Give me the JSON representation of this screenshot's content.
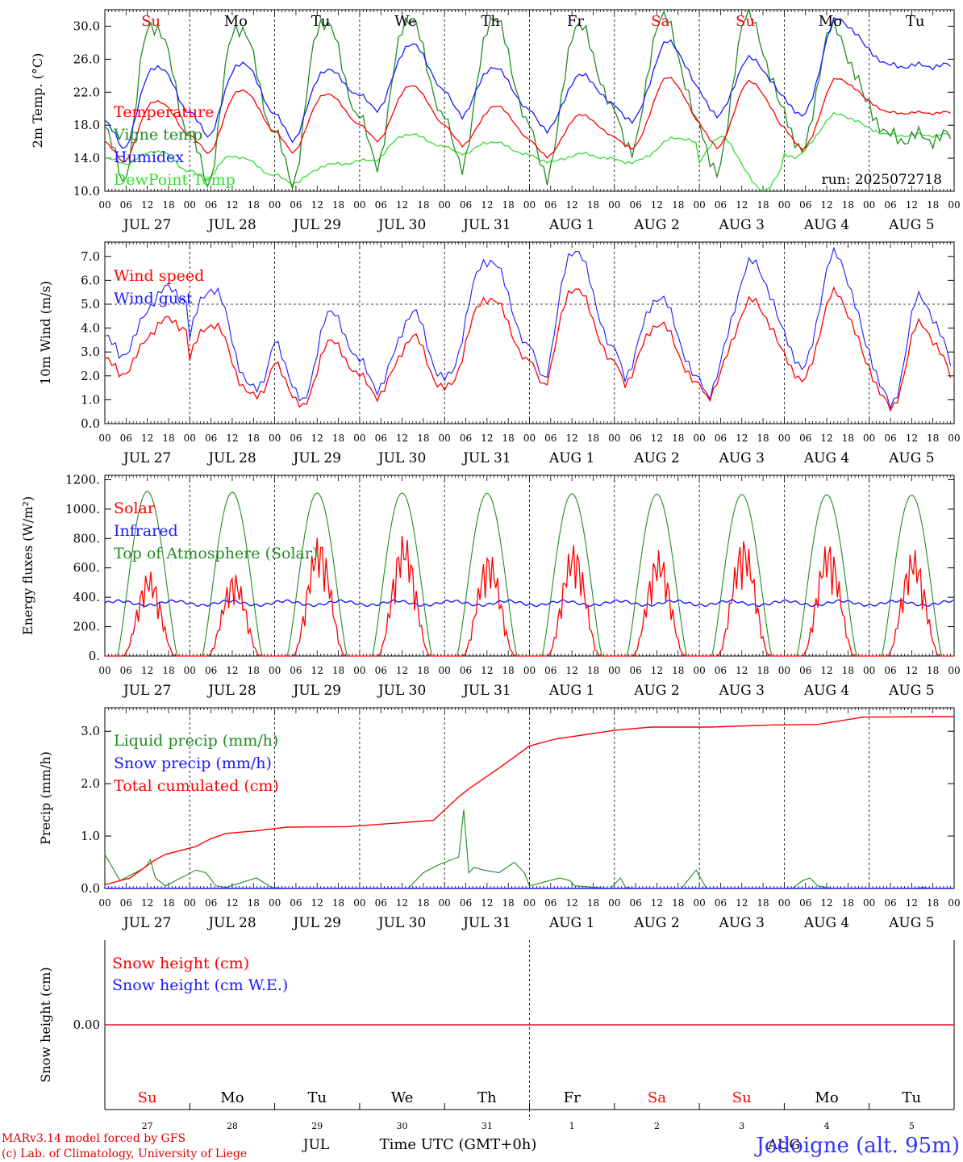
{
  "colors": {
    "red": "#ff0000",
    "green": "#228b22",
    "blue": "#1a1aff",
    "lightgreen": "#33dd33",
    "axis": "#000000",
    "grid": "#000000",
    "credit": "#dd0000",
    "station": "#3333ff"
  },
  "days": {
    "abbr": [
      "Su",
      "Mo",
      "Tu",
      "We",
      "Th",
      "Fr",
      "Sa",
      "Su",
      "Mo",
      "Tu"
    ],
    "weekend_flags": [
      true,
      false,
      false,
      false,
      false,
      false,
      true,
      true,
      false,
      false
    ],
    "dates": [
      "JUL 27",
      "JUL 28",
      "JUL 29",
      "JUL 30",
      "JUL 31",
      "AUG  1",
      "AUG  2",
      "AUG  3",
      "AUG  4",
      "AUG  5"
    ],
    "nums": [
      "27",
      "28",
      "29",
      "30",
      "31",
      "1",
      "2",
      "3",
      "4",
      "5"
    ],
    "hour_ticks": [
      "00",
      "06",
      "12",
      "18"
    ],
    "end_tick": "00"
  },
  "footer": {
    "credit_line1": "MARv3.14 model forced by GFS",
    "credit_line2": "(c) Lab. of Climatology, University of Liege",
    "month_jul": "JUL",
    "month_aug": "AUG",
    "time_label": "Time UTC (GMT+0h)",
    "station": "Jodoigne (alt. 95m)"
  },
  "chart_data": [
    {
      "id": "temp",
      "type": "line",
      "ylabel": "2m Temp. (°C)",
      "ylim": [
        10,
        32
      ],
      "yticks": [
        "10.0",
        "14.0",
        "18.0",
        "22.0",
        "26.0",
        "30.0"
      ],
      "ytick_values": [
        10,
        14,
        18,
        22,
        26,
        30
      ],
      "annotation": "run: 2025072718",
      "series": [
        {
          "name": "Temperature",
          "color": "red",
          "days": [
            {
              "min": 13.6,
              "max": 21.0,
              "tmin": 5,
              "tmax": 14
            },
            {
              "min": 14.7,
              "max": 22.3,
              "tmin": 5,
              "tmax": 14
            },
            {
              "min": 14.8,
              "max": 21.8,
              "tmin": 5,
              "tmax": 14
            },
            {
              "min": 16.2,
              "max": 22.8,
              "tmin": 5,
              "tmax": 14
            },
            {
              "min": 15.6,
              "max": 20.3,
              "tmin": 5,
              "tmax": 14
            },
            {
              "min": 14.2,
              "max": 19.2,
              "tmin": 5,
              "tmax": 14
            },
            {
              "min": 15.2,
              "max": 23.7,
              "tmin": 5,
              "tmax": 15
            },
            {
              "min": 15.2,
              "max": 23.2,
              "tmin": 5,
              "tmax": 14
            },
            {
              "min": 15.0,
              "max": 23.6,
              "tmin": 5,
              "tmax": 15
            },
            {
              "min": 19.5,
              "max": 19.5,
              "tmin": 5,
              "tmax": 10
            }
          ]
        },
        {
          "name": "Vigne temp",
          "color": "green",
          "days": [
            {
              "min": 11.5,
              "max": 30.5,
              "tmin": 5,
              "tmax": 13
            },
            {
              "min": 11.2,
              "max": 30.2,
              "tmin": 5,
              "tmax": 13
            },
            {
              "min": 11.3,
              "max": 30.8,
              "tmin": 5,
              "tmax": 13
            },
            {
              "min": 13.5,
              "max": 31.0,
              "tmin": 5,
              "tmax": 13
            },
            {
              "min": 13.2,
              "max": 31.0,
              "tmin": 5,
              "tmax": 13
            },
            {
              "min": 11.8,
              "max": 30.0,
              "tmin": 5,
              "tmax": 13
            },
            {
              "min": 14.8,
              "max": 31.0,
              "tmin": 5,
              "tmax": 13
            },
            {
              "min": 12.0,
              "max": 31.0,
              "tmin": 5,
              "tmax": 13
            },
            {
              "min": 14.5,
              "max": 29.5,
              "tmin": 5,
              "tmax": 13
            },
            {
              "min": 16.5,
              "max": 16.5,
              "tmin": 5,
              "tmax": 10
            }
          ]
        },
        {
          "name": "Humidex",
          "color": "blue",
          "days": [
            {
              "min": 15.3,
              "max": 25.2,
              "tmin": 5,
              "tmax": 14
            },
            {
              "min": 16.8,
              "max": 25.6,
              "tmin": 5,
              "tmax": 14
            },
            {
              "min": 16.3,
              "max": 24.7,
              "tmin": 5,
              "tmax": 14
            },
            {
              "min": 20.0,
              "max": 27.8,
              "tmin": 5,
              "tmax": 14
            },
            {
              "min": 19.2,
              "max": 25.0,
              "tmin": 5,
              "tmax": 13
            },
            {
              "min": 17.4,
              "max": 24.0,
              "tmin": 5,
              "tmax": 14
            },
            {
              "min": 18.5,
              "max": 28.0,
              "tmin": 5,
              "tmax": 15
            },
            {
              "min": 19.0,
              "max": 26.0,
              "tmin": 5,
              "tmax": 14
            },
            {
              "min": 19.0,
              "max": 30.8,
              "tmin": 5,
              "tmax": 15
            },
            {
              "min": 25.2,
              "max": 25.2,
              "tmin": 5,
              "tmax": 10
            }
          ]
        },
        {
          "name": "DewPoint Temp",
          "color": "lightgreen",
          "days": [
            {
              "min": 13.4,
              "max": 14.9,
              "tmin": 6,
              "tmax": 14
            },
            {
              "min": 11.5,
              "max": 14.3,
              "tmin": 4,
              "tmax": 12
            },
            {
              "min": 11.0,
              "max": 13.2,
              "tmin": 5,
              "tmax": 15
            },
            {
              "min": 13.8,
              "max": 16.9,
              "tmin": 4,
              "tmax": 13
            },
            {
              "min": 14.5,
              "max": 16.0,
              "tmin": 6,
              "tmax": 12
            },
            {
              "min": 13.5,
              "max": 14.5,
              "tmin": 6,
              "tmax": 14
            },
            {
              "min": 13.5,
              "max": 16.5,
              "tmin": 5,
              "tmax": 18
            },
            {
              "min": 10.2,
              "max": 16.5,
              "tmin": 16,
              "tmax": 2
            },
            {
              "min": 14.2,
              "max": 19.3,
              "tmin": 3,
              "tmax": 15
            },
            {
              "min": 16.8,
              "max": 16.8,
              "tmin": 5,
              "tmax": 10
            }
          ]
        }
      ]
    },
    {
      "id": "wind",
      "type": "line",
      "ylabel": "10m Wind (m/s)",
      "ylim": [
        0,
        7.6
      ],
      "yticks": [
        "0.0",
        "1.0",
        "2.0",
        "3.0",
        "4.0",
        "5.0",
        "6.0",
        "7.0"
      ],
      "ytick_values": [
        0,
        1,
        2,
        3,
        4,
        5,
        6,
        7
      ],
      "reference_line": 5.0,
      "series": [
        {
          "name": "Wind speed",
          "color": "red",
          "days": [
            {
              "min": 2.1,
              "max": 4.3,
              "tmin": 4,
              "tmax": 17
            },
            {
              "min": 1.1,
              "max": 4.2,
              "tmin": 23,
              "tmax": 17
            },
            {
              "min": 0.6,
              "max": 3.4,
              "tmin": 8,
              "tmax": 15
            },
            {
              "min": 1.2,
              "max": 3.6,
              "tmin": 5,
              "tmax": 15
            },
            {
              "min": 1.4,
              "max": 5.3,
              "tmin": 0,
              "tmax": 12
            },
            {
              "min": 1.7,
              "max": 5.7,
              "tmin": 4,
              "tmax": 12
            },
            {
              "min": 1.8,
              "max": 4.2,
              "tmin": 3,
              "tmax": 12
            },
            {
              "min": 1.2,
              "max": 5.1,
              "tmin": 2,
              "tmax": 15
            },
            {
              "min": 1.7,
              "max": 5.4,
              "tmin": 5,
              "tmax": 14
            },
            {
              "min": 0.5,
              "max": 4.1,
              "tmin": 6,
              "tmax": 14
            }
          ]
        },
        {
          "name": "Wind gust",
          "color": "blue",
          "days": [
            {
              "min": 2.9,
              "max": 5.6,
              "tmin": 4,
              "tmax": 17
            },
            {
              "min": 1.4,
              "max": 5.7,
              "tmin": 23,
              "tmax": 17
            },
            {
              "min": 0.8,
              "max": 4.6,
              "tmin": 8,
              "tmax": 15
            },
            {
              "min": 1.5,
              "max": 4.6,
              "tmin": 5,
              "tmax": 15
            },
            {
              "min": 1.8,
              "max": 6.9,
              "tmin": 0,
              "tmax": 12
            },
            {
              "min": 2.0,
              "max": 7.3,
              "tmin": 4,
              "tmax": 12
            },
            {
              "min": 2.1,
              "max": 5.3,
              "tmin": 3,
              "tmax": 12
            },
            {
              "min": 1.3,
              "max": 6.7,
              "tmin": 2,
              "tmax": 15
            },
            {
              "min": 2.2,
              "max": 7.0,
              "tmin": 5,
              "tmax": 14
            },
            {
              "min": 0.6,
              "max": 5.2,
              "tmin": 6,
              "tmax": 14
            }
          ]
        }
      ]
    },
    {
      "id": "energy",
      "type": "line",
      "ylabel": "Energy fluxes (W/m²)",
      "ylim": [
        0,
        1230
      ],
      "yticks": [
        "0.",
        "200.",
        "400.",
        "600.",
        "800.",
        "1000.",
        "1200."
      ],
      "ytick_values": [
        0,
        200,
        400,
        600,
        800,
        1000,
        1200
      ],
      "series": [
        {
          "name": "Solar",
          "color": "red",
          "daily_peak": [
            580,
            570,
            820,
            830,
            710,
            770,
            720,
            810,
            780,
            730
          ]
        },
        {
          "name": "Infrared",
          "color": "blue",
          "mean": 360
        },
        {
          "name": "Top of Atmosphere (Solar)",
          "color": "green",
          "daily_peak": [
            1120,
            1115,
            1110,
            1110,
            1108,
            1105,
            1102,
            1100,
            1098,
            1095
          ],
          "sunrise_hour": 3.5,
          "sunset_hour": 20.5
        }
      ]
    },
    {
      "id": "precip",
      "type": "line",
      "ylabel": "Precip (mm/h)",
      "ylim": [
        0,
        3.45
      ],
      "yticks": [
        "0.0",
        "1.0",
        "2.0",
        "3.0"
      ],
      "ytick_values": [
        0,
        1,
        2,
        3
      ],
      "series": [
        {
          "name": "Liquid precip (mm/h)",
          "color": "green",
          "x_hours": [
            0,
            6,
            10,
            16,
            18,
            20,
            24,
            36,
            40,
            44,
            48,
            60,
            66,
            72,
            120,
            126,
            132,
            140,
            142,
            144,
            146,
            150,
            156,
            162,
            166,
            168,
            180,
            184,
            186,
            200,
            204,
            206,
            210,
            228,
            234,
            238,
            240,
            272,
            276,
            279,
            282,
            288,
            320,
            324,
            326,
            336
          ],
          "values": [
            0.65,
            0.15,
            0.25,
            0.4,
            0.55,
            0.2,
            0.05,
            0.35,
            0.3,
            0.05,
            0.02,
            0.2,
            0.02,
            0.0,
            0.0,
            0.3,
            0.45,
            0.6,
            1.5,
            0.3,
            0.4,
            0.35,
            0.3,
            0.5,
            0.3,
            0.05,
            0.2,
            0.15,
            0.05,
            0.0,
            0.2,
            0.02,
            0.0,
            0.0,
            0.35,
            0.0,
            0.0,
            0.0,
            0.15,
            0.2,
            0.05,
            0.0,
            0.0,
            0.02,
            0.0,
            0.0
          ]
        },
        {
          "name": "Snow precip (mm/h)",
          "color": "blue",
          "constant": 0.0
        },
        {
          "name": "Total cumulated (cm)",
          "color": "red",
          "x_hours": [
            0,
            10,
            20,
            24,
            36,
            42,
            48,
            60,
            72,
            96,
            130,
            140,
            144,
            156,
            168,
            178,
            192,
            202,
            216,
            240,
            264,
            282,
            300,
            336
          ],
          "values": [
            0.07,
            0.2,
            0.55,
            0.65,
            0.8,
            0.95,
            1.05,
            1.1,
            1.17,
            1.18,
            1.3,
            1.75,
            1.9,
            2.3,
            2.72,
            2.85,
            2.95,
            3.02,
            3.08,
            3.08,
            3.12,
            3.13,
            3.27,
            3.28
          ]
        }
      ]
    },
    {
      "id": "snow",
      "type": "line",
      "ylabel": "Snow height (cm)",
      "ylim": [
        -1,
        1
      ],
      "yticks": [
        "0.00"
      ],
      "ytick_values": [
        0
      ],
      "series": [
        {
          "name": "Snow height (cm)",
          "color": "red",
          "constant": 0.0
        },
        {
          "name": "Snow height (cm W.E.)",
          "color": "blue",
          "constant": 0.0
        }
      ]
    }
  ]
}
